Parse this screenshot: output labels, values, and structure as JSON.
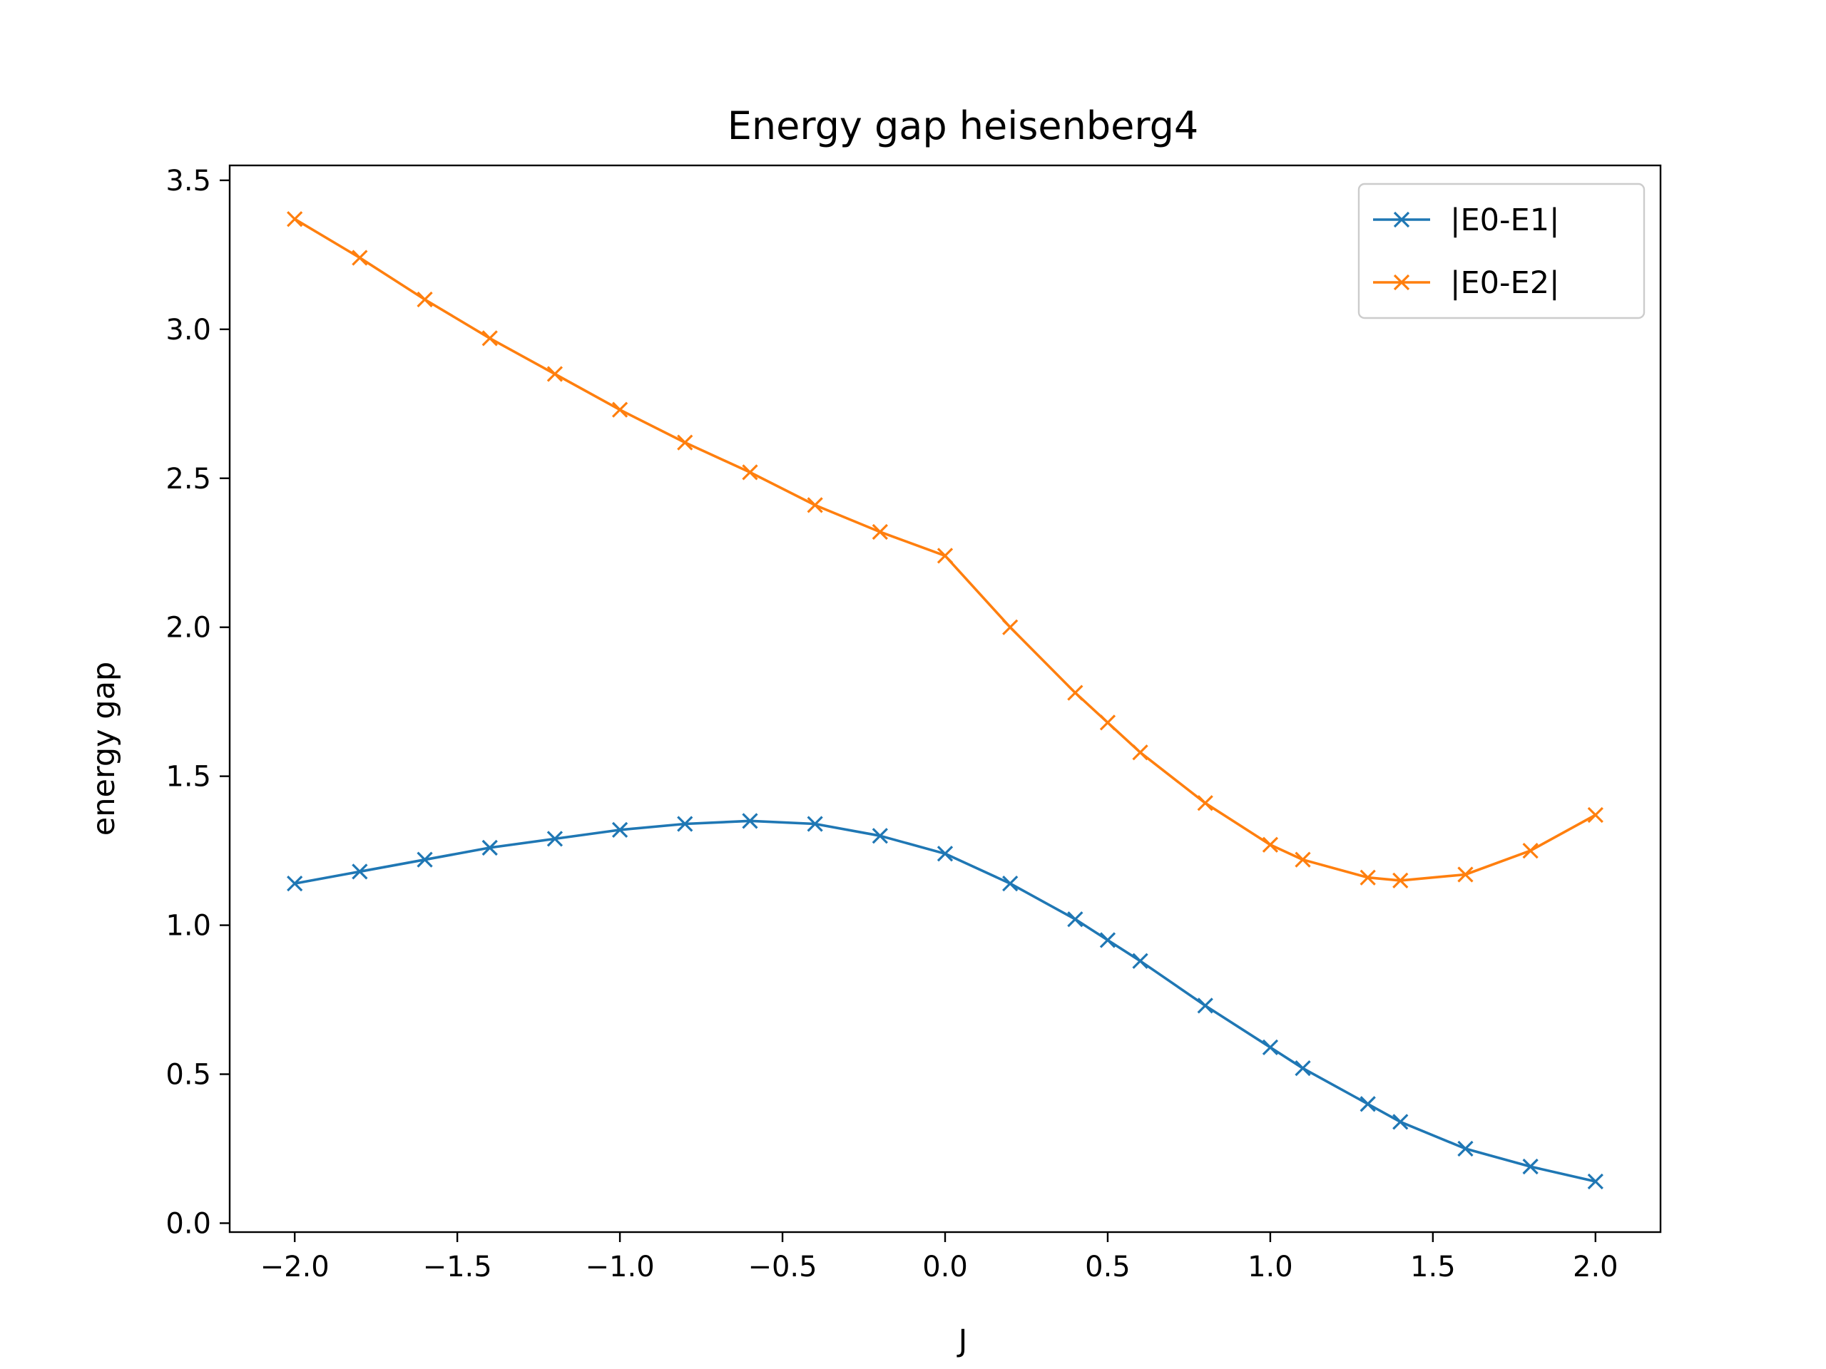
{
  "chart_data": {
    "type": "line",
    "title": "Energy gap heisenberg4",
    "xlabel": "J",
    "ylabel": "energy gap",
    "xlim": [
      -2.2,
      2.2
    ],
    "ylim": [
      -0.03,
      3.55
    ],
    "x_ticks": [
      -2.0,
      -1.5,
      -1.0,
      -0.5,
      0.0,
      0.5,
      1.0,
      1.5,
      2.0
    ],
    "x_tick_labels": [
      "−2.0",
      "−1.5",
      "−1.0",
      "−0.5",
      "0.0",
      "0.5",
      "1.0",
      "1.5",
      "2.0"
    ],
    "y_ticks": [
      0.0,
      0.5,
      1.0,
      1.5,
      2.0,
      2.5,
      3.0,
      3.5
    ],
    "y_tick_labels": [
      "0.0",
      "0.5",
      "1.0",
      "1.5",
      "2.0",
      "2.5",
      "3.0",
      "3.5"
    ],
    "grid": false,
    "legend_position": "top-right",
    "marker": "x",
    "series": [
      {
        "name": "|E0-E1|",
        "color": "#1f77b4",
        "x": [
          -2.0,
          -1.8,
          -1.6,
          -1.4,
          -1.2,
          -1.0,
          -0.8,
          -0.6,
          -0.4,
          -0.2,
          0.0,
          0.2,
          0.4,
          0.5,
          0.6,
          0.8,
          1.0,
          1.1,
          1.3,
          1.4,
          1.6,
          1.8,
          2.0
        ],
        "values": [
          1.14,
          1.18,
          1.22,
          1.26,
          1.29,
          1.32,
          1.34,
          1.35,
          1.34,
          1.3,
          1.24,
          1.14,
          1.02,
          0.95,
          0.88,
          0.73,
          0.59,
          0.52,
          0.4,
          0.34,
          0.25,
          0.19,
          0.14
        ]
      },
      {
        "name": "|E0-E2|",
        "color": "#ff7f0e",
        "x": [
          -2.0,
          -1.8,
          -1.6,
          -1.4,
          -1.2,
          -1.0,
          -0.8,
          -0.6,
          -0.4,
          -0.2,
          0.0,
          0.2,
          0.4,
          0.5,
          0.6,
          0.8,
          1.0,
          1.1,
          1.3,
          1.4,
          1.6,
          1.8,
          2.0
        ],
        "values": [
          3.37,
          3.24,
          3.1,
          2.97,
          2.85,
          2.73,
          2.62,
          2.52,
          2.41,
          2.32,
          2.24,
          2.0,
          1.78,
          1.68,
          1.58,
          1.41,
          1.27,
          1.22,
          1.16,
          1.15,
          1.17,
          1.25,
          1.37
        ]
      }
    ]
  }
}
